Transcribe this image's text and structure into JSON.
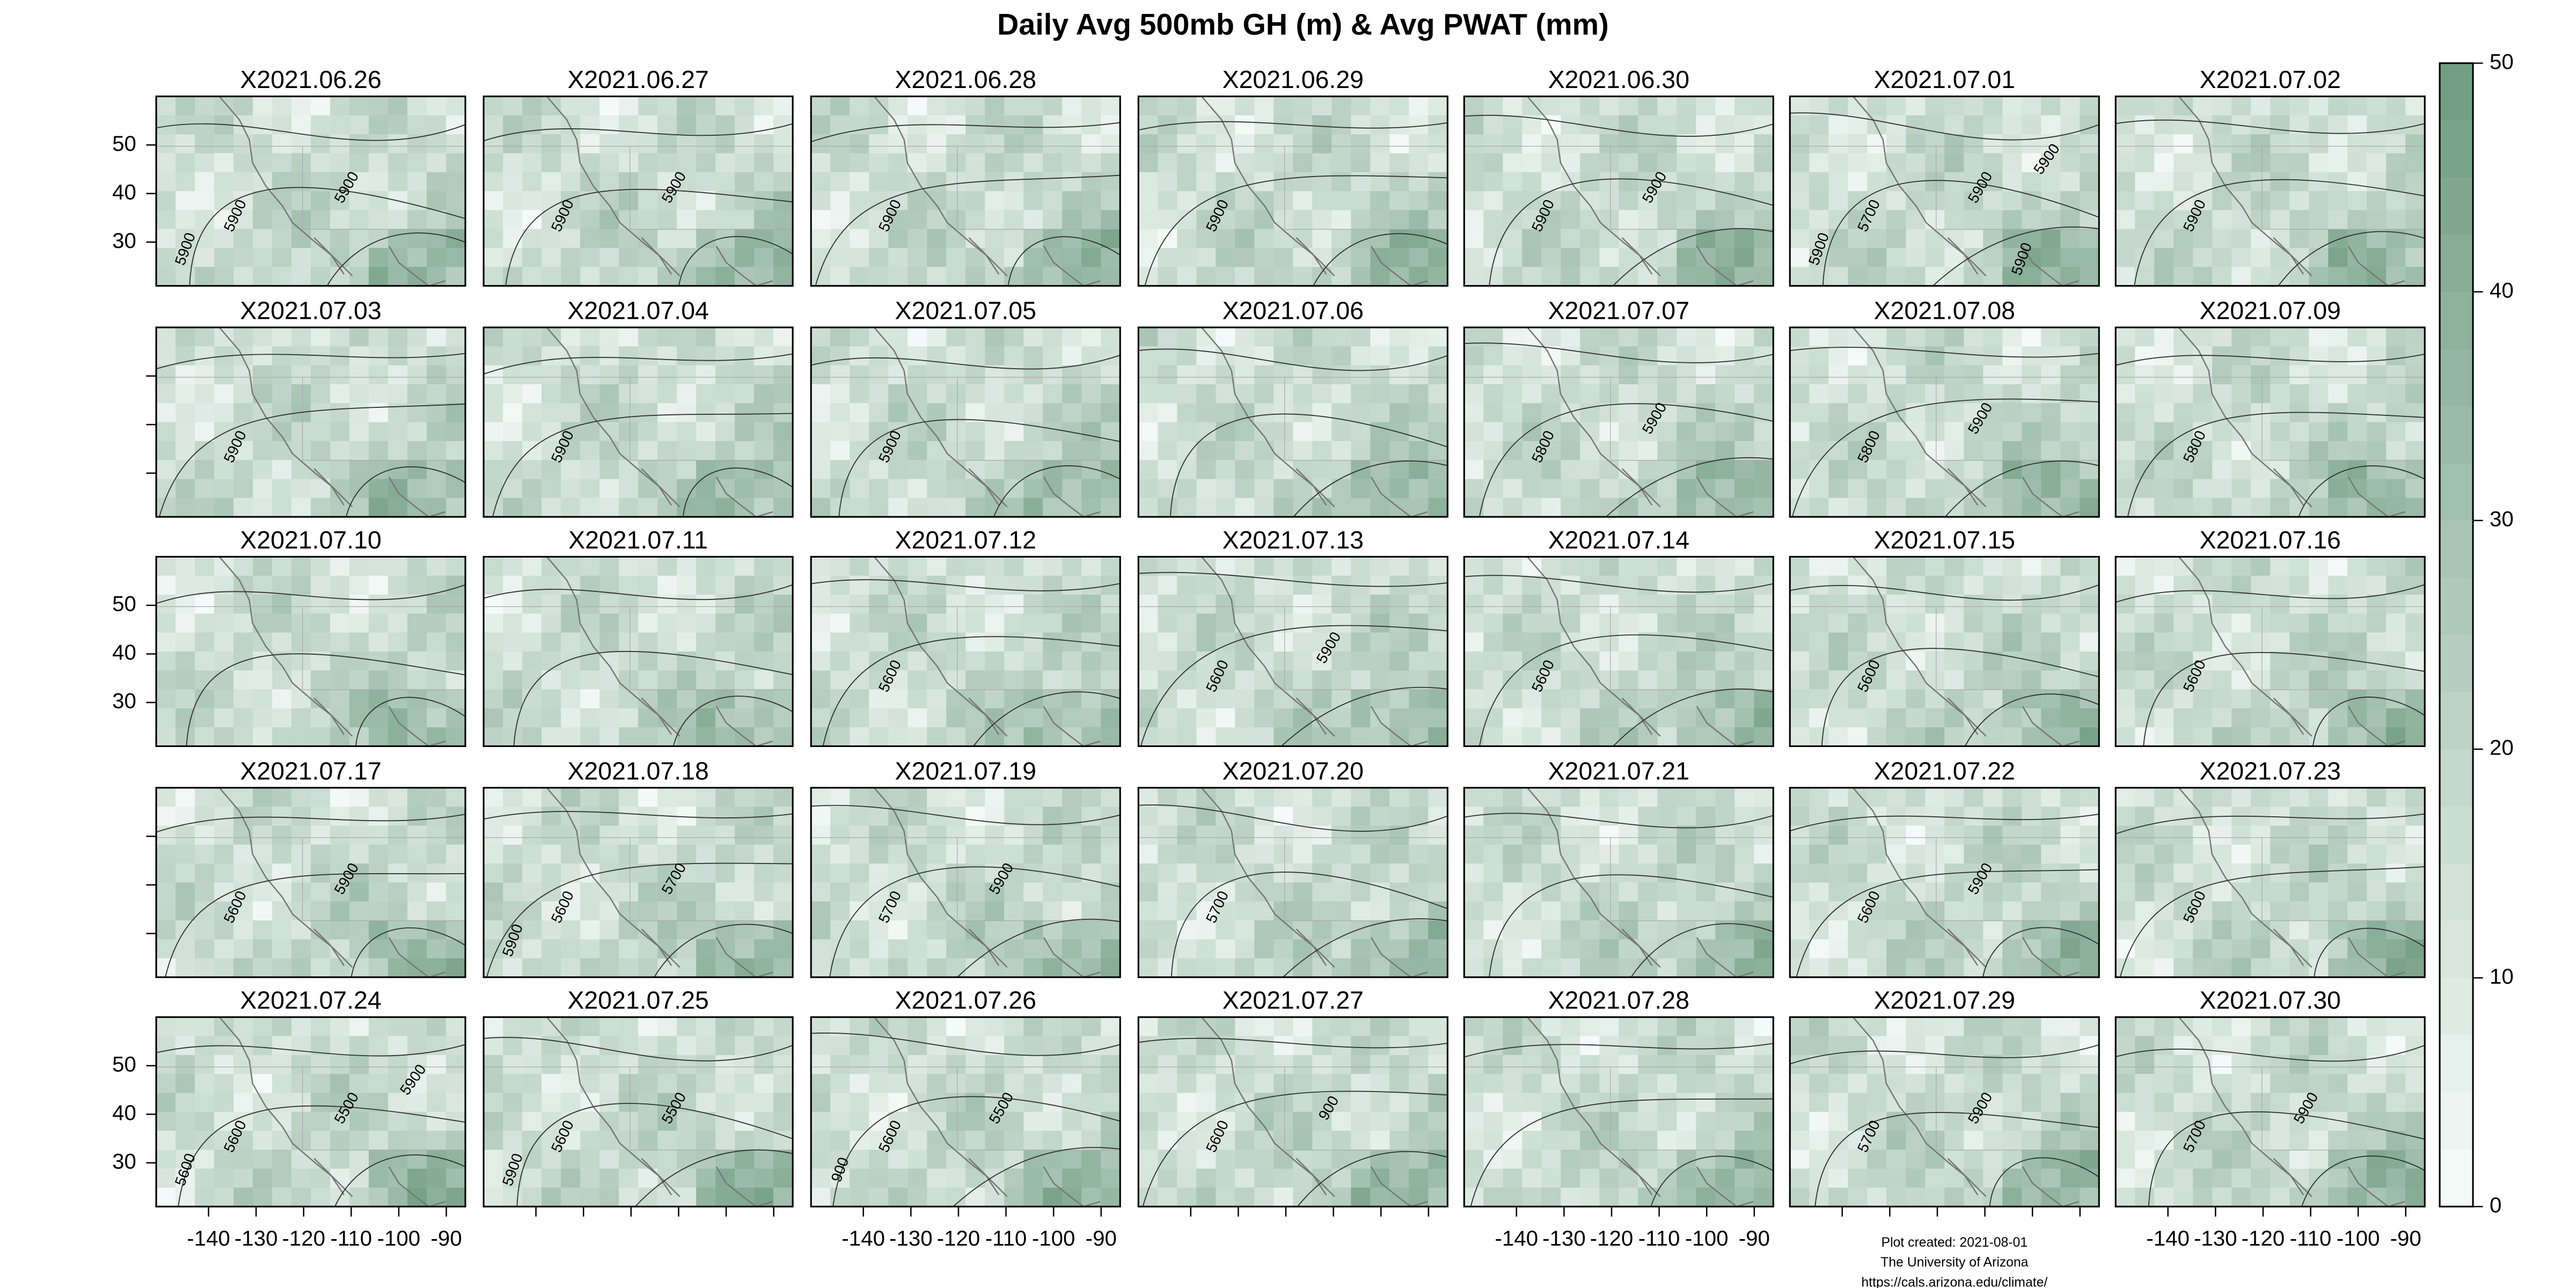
{
  "chart_data": {
    "type": "map-panels",
    "title": "Daily Avg 500mb GH (m) & Avg PWAT (mm)",
    "panels": [
      {
        "title": "X2021.06.26",
        "contour_labels": [
          "5900",
          "5900",
          "5900"
        ]
      },
      {
        "title": "X2021.06.27",
        "contour_labels": [
          "5900",
          "5900"
        ]
      },
      {
        "title": "X2021.06.28",
        "contour_labels": [
          "5900"
        ]
      },
      {
        "title": "X2021.06.29",
        "contour_labels": [
          "5900"
        ]
      },
      {
        "title": "X2021.06.30",
        "contour_labels": [
          "5900",
          "5900"
        ]
      },
      {
        "title": "X2021.07.01",
        "contour_labels": [
          "5700",
          "5900",
          "5900",
          "5900",
          "5900"
        ]
      },
      {
        "title": "X2021.07.02",
        "contour_labels": [
          "5900"
        ]
      },
      {
        "title": "X2021.07.03",
        "contour_labels": [
          "5900"
        ]
      },
      {
        "title": "X2021.07.04",
        "contour_labels": [
          "5900"
        ]
      },
      {
        "title": "X2021.07.05",
        "contour_labels": [
          "5900"
        ]
      },
      {
        "title": "X2021.07.06",
        "contour_labels": []
      },
      {
        "title": "X2021.07.07",
        "contour_labels": [
          "5800",
          "5900"
        ]
      },
      {
        "title": "X2021.07.08",
        "contour_labels": [
          "5800",
          "5900"
        ]
      },
      {
        "title": "X2021.07.09",
        "contour_labels": [
          "5800"
        ]
      },
      {
        "title": "X2021.07.10",
        "contour_labels": []
      },
      {
        "title": "X2021.07.11",
        "contour_labels": []
      },
      {
        "title": "X2021.07.12",
        "contour_labels": [
          "5600"
        ]
      },
      {
        "title": "X2021.07.13",
        "contour_labels": [
          "5600",
          "5900"
        ]
      },
      {
        "title": "X2021.07.14",
        "contour_labels": [
          "5600"
        ]
      },
      {
        "title": "X2021.07.15",
        "contour_labels": [
          "5600"
        ]
      },
      {
        "title": "X2021.07.16",
        "contour_labels": [
          "5600"
        ]
      },
      {
        "title": "X2021.07.17",
        "contour_labels": [
          "5600",
          "5900"
        ]
      },
      {
        "title": "X2021.07.18",
        "contour_labels": [
          "5600",
          "5700",
          "5900"
        ]
      },
      {
        "title": "X2021.07.19",
        "contour_labels": [
          "5700",
          "5900"
        ]
      },
      {
        "title": "X2021.07.20",
        "contour_labels": [
          "5700"
        ]
      },
      {
        "title": "X2021.07.21",
        "contour_labels": []
      },
      {
        "title": "X2021.07.22",
        "contour_labels": [
          "5600",
          "5900"
        ]
      },
      {
        "title": "X2021.07.23",
        "contour_labels": [
          "5600"
        ]
      },
      {
        "title": "X2021.07.24",
        "contour_labels": [
          "5600",
          "5500",
          "5600",
          "5900"
        ]
      },
      {
        "title": "X2021.07.25",
        "contour_labels": [
          "5600",
          "5500",
          "5900"
        ]
      },
      {
        "title": "X2021.07.26",
        "contour_labels": [
          "5600",
          "5500",
          "900"
        ]
      },
      {
        "title": "X2021.07.27",
        "contour_labels": [
          "5600",
          "900"
        ]
      },
      {
        "title": "X2021.07.28",
        "contour_labels": []
      },
      {
        "title": "X2021.07.29",
        "contour_labels": [
          "5700",
          "5900"
        ]
      },
      {
        "title": "X2021.07.30",
        "contour_labels": [
          "5700",
          "5900"
        ]
      }
    ],
    "xlim": [
      -151,
      -86
    ],
    "xticks": [
      -140,
      -130,
      -120,
      -110,
      -100,
      -90
    ],
    "ylim": [
      21,
      60
    ],
    "yticks": [
      30,
      40,
      50
    ],
    "colorbar": {
      "lim": [
        0,
        50
      ],
      "ticks": [
        0,
        10,
        20,
        30,
        40,
        50
      ],
      "colors": [
        "#f7fcfb",
        "#6f9c80"
      ]
    },
    "footer": [
      "Plot created: 2021-08-01",
      "The University of Arizona",
      "https://cals.arizona.edu/climate/"
    ]
  }
}
